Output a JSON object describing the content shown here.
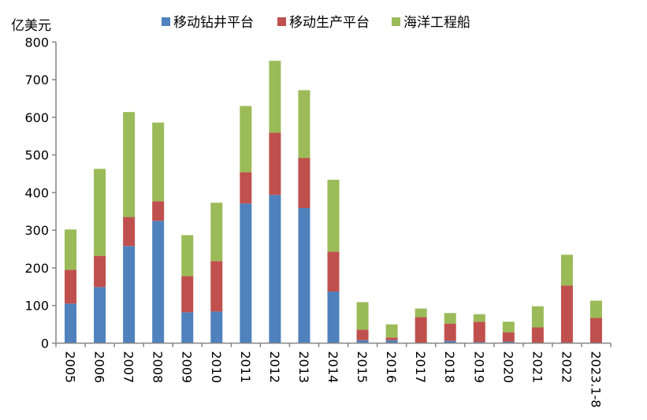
{
  "chart_data": {
    "type": "bar",
    "stacked": true,
    "ylabel": "亿美元",
    "ylim": [
      0,
      800
    ],
    "yticks": [
      0,
      100,
      200,
      300,
      400,
      500,
      600,
      700,
      800
    ],
    "grid": false,
    "legend_position": "top",
    "categories": [
      "2005",
      "2006",
      "2007",
      "2008",
      "2009",
      "2010",
      "2011",
      "2012",
      "2013",
      "2014",
      "2015",
      "2016",
      "2017",
      "2018",
      "2019",
      "2020",
      "2021",
      "2022",
      "2023.1-8"
    ],
    "series": [
      {
        "name": "移动钻井平台",
        "color": "#4f81bd",
        "values": [
          105,
          149,
          258,
          325,
          82,
          84,
          371,
          394,
          359,
          137,
          8,
          8,
          0,
          6,
          3,
          4,
          0,
          0,
          0
        ]
      },
      {
        "name": "移动生产平台",
        "color": "#c0504d",
        "values": [
          90,
          83,
          77,
          52,
          96,
          134,
          83,
          165,
          133,
          106,
          28,
          7,
          69,
          46,
          54,
          25,
          42,
          153,
          67
        ]
      },
      {
        "name": "海洋工程船",
        "color": "#9bbb59",
        "values": [
          107,
          231,
          279,
          209,
          109,
          155,
          176,
          191,
          180,
          191,
          73,
          35,
          23,
          28,
          20,
          28,
          56,
          82,
          46
        ]
      }
    ]
  }
}
